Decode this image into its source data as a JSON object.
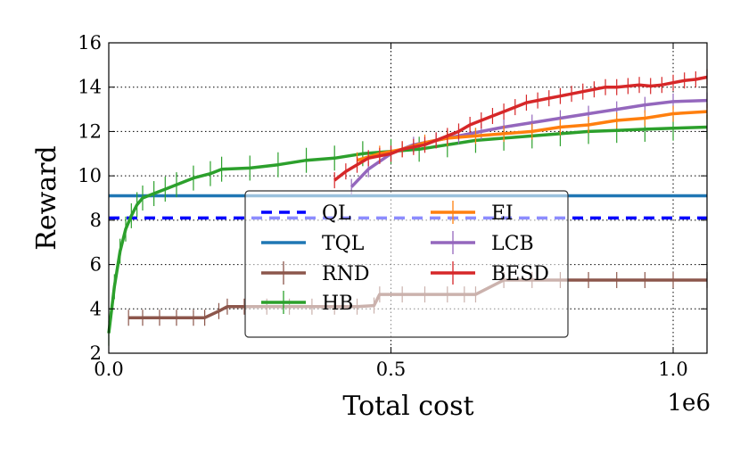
{
  "chart_data": {
    "type": "line",
    "title": "",
    "xlabel": "Total cost",
    "ylabel": "Reward",
    "x_offset_label": "1e6",
    "xlim": [
      0,
      1060000
    ],
    "ylim": [
      2,
      16
    ],
    "grid": true,
    "grid_style": "dotted",
    "x_ticks": [
      0,
      500000,
      1000000
    ],
    "x_tick_labels": [
      "0.0",
      "0.5",
      "1.0"
    ],
    "y_ticks": [
      2,
      4,
      6,
      8,
      10,
      12,
      14,
      16
    ],
    "y_tick_labels": [
      "2",
      "4",
      "6",
      "8",
      "10",
      "12",
      "14",
      "16"
    ],
    "legend_position": "bottom-center",
    "series": [
      {
        "name": "QL",
        "color": "#0000ff",
        "style": "dashed",
        "x": [
          0,
          1060000
        ],
        "y": [
          8.1,
          8.1
        ]
      },
      {
        "name": "TQL",
        "color": "#1f77b4",
        "style": "solid",
        "x": [
          0,
          1060000
        ],
        "y": [
          9.1,
          9.1
        ]
      },
      {
        "name": "RND",
        "color": "#8c564b",
        "style": "errorbar",
        "x": [
          35000,
          60000,
          90000,
          120000,
          150000,
          170000,
          195000,
          210000,
          240000,
          280000,
          320000,
          360000,
          400000,
          440000,
          470000,
          480000,
          520000,
          560000,
          600000,
          630000,
          650000,
          700000,
          750000,
          800000,
          850000,
          900000,
          950000,
          1000000,
          1060000
        ],
        "y": [
          3.6,
          3.6,
          3.6,
          3.6,
          3.6,
          3.6,
          3.9,
          4.1,
          4.1,
          4.1,
          4.1,
          4.1,
          4.1,
          4.1,
          4.15,
          4.65,
          4.65,
          4.65,
          4.65,
          4.65,
          4.65,
          5.3,
          5.3,
          5.3,
          5.3,
          5.3,
          5.3,
          5.3,
          5.3
        ]
      },
      {
        "name": "HB",
        "color": "#2ca02c",
        "style": "errorbar",
        "x": [
          0,
          10000,
          20000,
          30000,
          40000,
          50000,
          60000,
          80000,
          100000,
          120000,
          150000,
          180000,
          200000,
          250000,
          300000,
          350000,
          400000,
          450000,
          500000,
          550000,
          600000,
          650000,
          700000,
          750000,
          800000,
          850000,
          900000,
          950000,
          1000000,
          1060000
        ],
        "y": [
          2.9,
          5.0,
          6.6,
          7.6,
          8.2,
          8.7,
          9.0,
          9.2,
          9.4,
          9.6,
          9.9,
          10.1,
          10.3,
          10.35,
          10.5,
          10.7,
          10.8,
          11.0,
          11.1,
          11.2,
          11.4,
          11.6,
          11.7,
          11.8,
          11.9,
          12.0,
          12.05,
          12.1,
          12.15,
          12.2
        ]
      },
      {
        "name": "EI",
        "color": "#ff7f0e",
        "style": "errorbar",
        "x": [
          440000,
          480000,
          520000,
          560000,
          600000,
          650000,
          700000,
          750000,
          800000,
          850000,
          900000,
          950000,
          1000000,
          1060000
        ],
        "y": [
          10.7,
          11.0,
          11.2,
          11.5,
          11.7,
          11.8,
          11.9,
          12.0,
          12.2,
          12.3,
          12.5,
          12.6,
          12.8,
          12.9
        ]
      },
      {
        "name": "LCB",
        "color": "#9467bd",
        "style": "errorbar",
        "x": [
          430000,
          460000,
          500000,
          540000,
          580000,
          620000,
          660000,
          700000,
          750000,
          800000,
          850000,
          900000,
          950000,
          1000000,
          1060000
        ],
        "y": [
          9.5,
          10.3,
          11.0,
          11.4,
          11.6,
          11.8,
          12.0,
          12.2,
          12.4,
          12.6,
          12.8,
          13.0,
          13.2,
          13.35,
          13.4
        ]
      },
      {
        "name": "BESD",
        "color": "#d62728",
        "style": "errorbar",
        "x": [
          400000,
          420000,
          440000,
          460000,
          480000,
          500000,
          520000,
          540000,
          560000,
          580000,
          600000,
          620000,
          640000,
          660000,
          680000,
          700000,
          720000,
          740000,
          760000,
          780000,
          800000,
          820000,
          840000,
          860000,
          880000,
          900000,
          920000,
          940000,
          960000,
          980000,
          1000000,
          1020000,
          1040000,
          1060000
        ],
        "y": [
          9.8,
          10.2,
          10.5,
          10.8,
          10.9,
          11.0,
          11.2,
          11.3,
          11.4,
          11.6,
          11.8,
          12.0,
          12.3,
          12.5,
          12.7,
          12.9,
          13.1,
          13.3,
          13.4,
          13.5,
          13.6,
          13.7,
          13.8,
          13.9,
          14.0,
          14.0,
          14.05,
          14.1,
          14.05,
          14.1,
          14.2,
          14.3,
          14.35,
          14.45
        ]
      }
    ]
  }
}
